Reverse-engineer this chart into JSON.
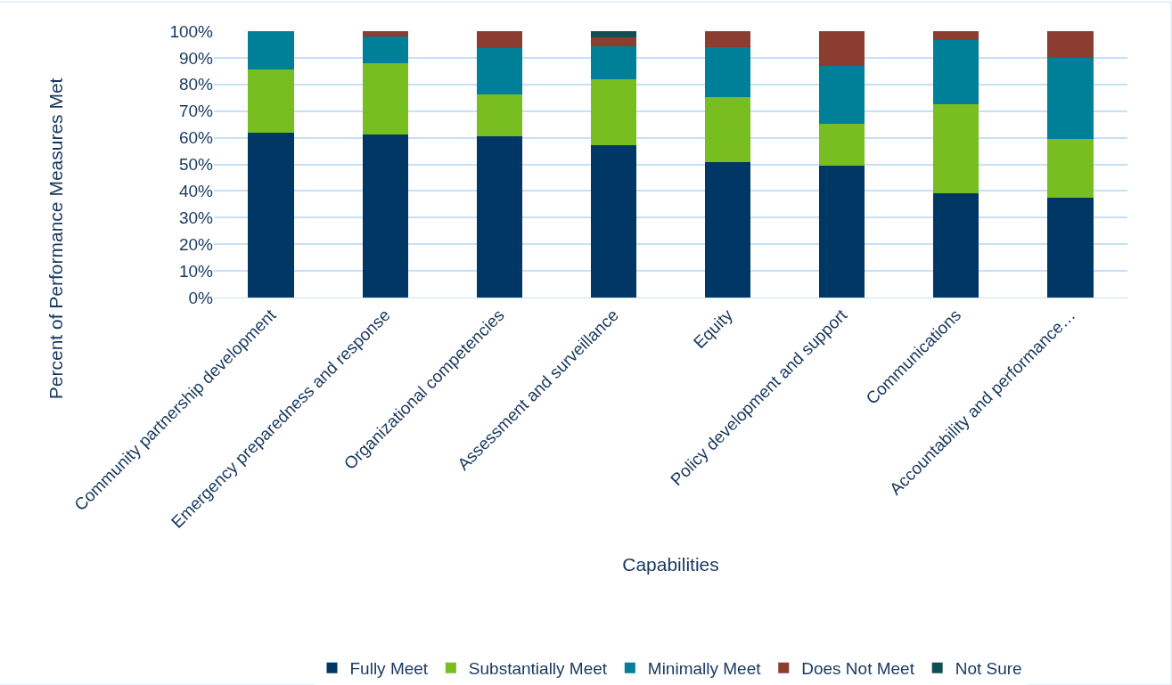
{
  "chart_data": {
    "type": "bar",
    "stacked": true,
    "xlabel": "Capabilities",
    "ylabel": "Percent of Performance Measures Met",
    "categories": [
      "Community partnership development",
      "Emergency preparedness and response",
      "Organizational competencies",
      "Assessment and surveillance",
      "Equity",
      "Policy development and support",
      "Communications",
      "Accountability and performance…"
    ],
    "series": [
      {
        "name": "Fully Meet",
        "color": "#003764",
        "values": [
          62,
          61.3,
          60.4,
          57.3,
          50.9,
          49.4,
          39.1,
          37.5
        ]
      },
      {
        "name": "Substantially Meet",
        "color": "#78be20",
        "values": [
          23.7,
          26.5,
          16,
          24.8,
          24.5,
          15.9,
          33.4,
          22.2
        ]
      },
      {
        "name": "Minimally Meet",
        "color": "#007f99",
        "values": [
          14.3,
          10.3,
          17.2,
          12.2,
          18.7,
          21.8,
          24.1,
          30.4
        ]
      },
      {
        "name": "Does Not Meet",
        "color": "#8b3e2f",
        "values": [
          null,
          1.9,
          6.4,
          3.5,
          5.9,
          12.9,
          3.4,
          9.9
        ]
      },
      {
        "name": "Not Sure",
        "color": "#0f4f52",
        "values": [
          null,
          null,
          null,
          2.2,
          null,
          null,
          null,
          null
        ]
      }
    ],
    "ylim": [
      0,
      100
    ],
    "yticks": [
      {
        "value": 0,
        "label": "0%"
      },
      {
        "value": 10,
        "label": "10%"
      },
      {
        "value": 20,
        "label": "20%"
      },
      {
        "value": 30,
        "label": "30%"
      },
      {
        "value": 40,
        "label": "40%"
      },
      {
        "value": 50,
        "label": "50%"
      },
      {
        "value": 60,
        "label": "60%"
      },
      {
        "value": 70,
        "label": "70%"
      },
      {
        "value": 80,
        "label": "80%"
      },
      {
        "value": 90,
        "label": "90%"
      },
      {
        "value": 100,
        "label": "100%"
      }
    ],
    "grid": "y",
    "legend": "bottom"
  }
}
